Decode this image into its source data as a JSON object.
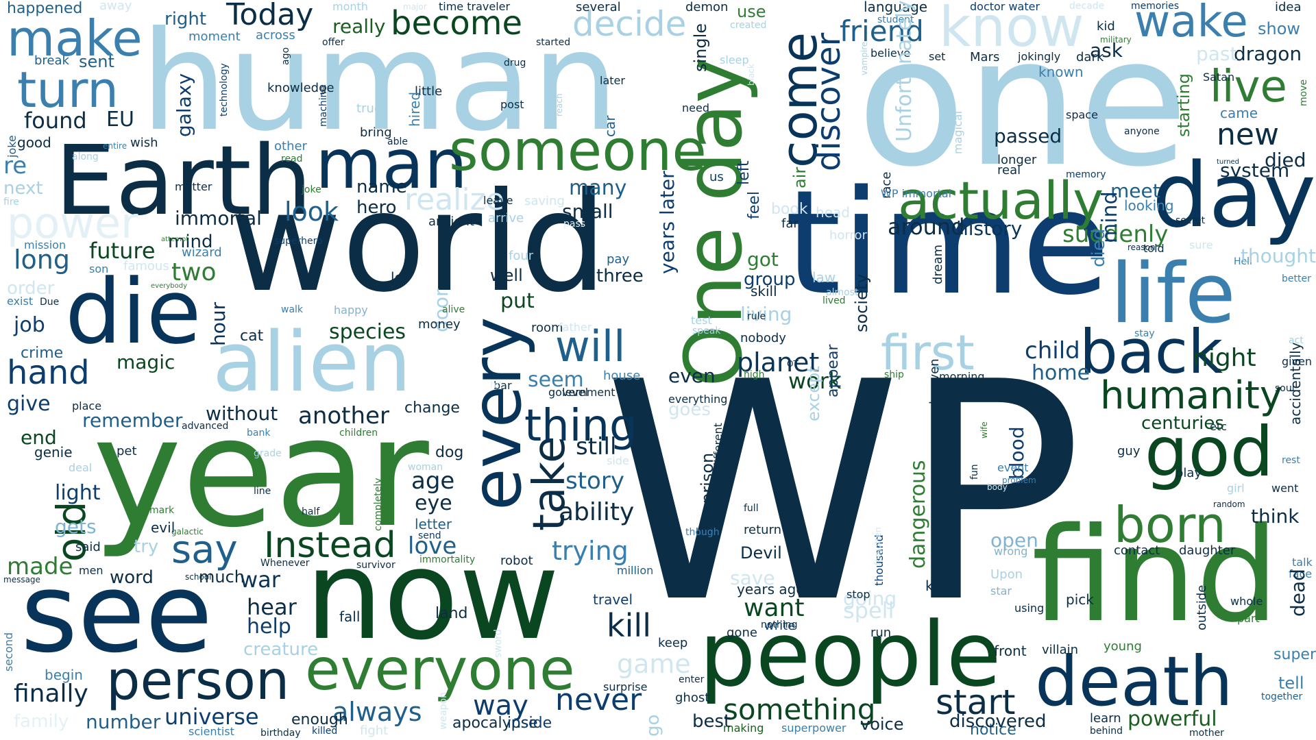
{
  "palette": {
    "navy": "#0b2d45",
    "blue": "#0c3d6e",
    "dark_green": "#1b5e20",
    "green": "#2e7d32",
    "steel": "#1f5f8b",
    "sky": "#3a7fad",
    "light_blue": "#7fb3d1",
    "pale_blue": "#a8d1e3",
    "very_pale_blue": "#cfe6f0",
    "background": "#ffffff"
  },
  "words": [
    "WP",
    "time",
    "world",
    "year",
    "one",
    "human",
    "now",
    "see",
    "find",
    "people",
    "day",
    "Earth",
    "alien",
    "die",
    "life",
    "every",
    "One day",
    "death",
    "man",
    "someone",
    "everyone",
    "person",
    "god",
    "actually",
    "back",
    "make",
    "turn",
    "born",
    "come",
    "first",
    "know",
    "will",
    "wake",
    "humanity",
    "live",
    "Instead",
    "thing",
    "discover",
    "take",
    "Today",
    "become",
    "decide",
    "old",
    "say",
    "hand",
    "friend",
    "power",
    "realize",
    "kill",
    "never",
    "start",
    "something",
    "new",
    "immortal",
    "look",
    "around",
    "suddenly",
    "another",
    "without",
    "species",
    "universe",
    "always",
    "way",
    "died",
    "night",
    "child",
    "home",
    "meet",
    "planet",
    "history",
    "small",
    "many",
    "remember",
    "future",
    "two",
    "long",
    "job",
    "give",
    "end",
    "light",
    "made",
    "finally",
    "number",
    "love",
    "age",
    "eye",
    "story",
    "trying",
    "ability",
    "seem",
    "still",
    "put",
    "work",
    "even",
    "want",
    "group",
    "got",
    "skill",
    "living",
    "name",
    "hero",
    "mind",
    "galaxy",
    "cat",
    "hour",
    "magic",
    "crime",
    "genie",
    "pet",
    "gets",
    "word",
    "much",
    "war",
    "hear",
    "help",
    "land",
    "fall",
    "dog",
    "letter",
    "change",
    "door",
    "three",
    "well",
    "let",
    "happened",
    "away",
    "right",
    "moment",
    "across",
    "really",
    "month",
    "major",
    "time traveler",
    "several",
    "demon",
    "use",
    "created",
    "language",
    "student",
    "doctor water",
    "decade",
    "memories",
    "idea",
    "kid",
    "military",
    "show",
    "dragon",
    "dark",
    "Mars",
    "jokingly",
    "believe",
    "set",
    "little",
    "drug",
    "started",
    "break",
    "sent",
    "found",
    "EU",
    "good",
    "wish",
    "re",
    "next",
    "fire",
    "mission",
    "exist",
    "Due",
    "order",
    "everybody",
    "son",
    "famous",
    "wizard",
    "superhero",
    "ancient",
    "arrive",
    "pass",
    "four",
    "pay",
    "room",
    "father",
    "money",
    "alive",
    "happy",
    "walk",
    "test",
    "speak",
    "nobody",
    "high",
    "OT",
    "ship",
    "morning",
    "king",
    "Devil",
    "return",
    "full",
    "luck",
    "though",
    "send",
    "immortality",
    "Whenever",
    "survivor",
    "robot",
    "million",
    "school",
    "men",
    "message",
    "said",
    "try",
    "evil",
    "galactic",
    "mark",
    "half",
    "line",
    "completely",
    "woman",
    "deal",
    "advanced",
    "bank",
    "children",
    "place",
    "level",
    "government",
    "house",
    "bar",
    "side",
    "game",
    "goes",
    "travel",
    "enter",
    "surprise",
    "sword",
    "weapon",
    "ghost",
    "best",
    "making",
    "superpower",
    "voice",
    "notice",
    "learn",
    "behind",
    "powerful",
    "mother",
    "together",
    "tell",
    "super",
    "face",
    "talk",
    "dead",
    "whole",
    "part",
    "pick",
    "villain",
    "young",
    "outside",
    "front",
    "discovered",
    "using",
    "star",
    "Upon",
    "wrong",
    "open",
    "contact",
    "daughter",
    "think",
    "random",
    "girl",
    "went",
    "play",
    "guy",
    "etc",
    "centuries",
    "accidentally",
    "rest",
    "soul",
    "given",
    "act",
    "better",
    "stay",
    "Hell",
    "thought",
    "sure",
    "reason",
    "told",
    "secret",
    "looking",
    "died",
    "system",
    "starting",
    "came",
    "anyone",
    "space",
    "longer",
    "real",
    "passed",
    "memory",
    "turned",
    "move",
    "Satan",
    "known",
    "ask",
    "past",
    "Unfortunately",
    "magical",
    "vampire",
    "air",
    "black",
    "sleep",
    "hired",
    "able",
    "bring",
    "true",
    "post",
    "later",
    "car",
    "need",
    "single",
    "us",
    "left",
    "feel",
    "book",
    "head",
    "far",
    "horror",
    "rule",
    "law",
    "almost",
    "lived",
    "society",
    "appear",
    "except",
    "prison",
    "different",
    "everything",
    "dangerous",
    "thousand",
    "forgotten",
    "fun",
    "wife",
    "body",
    "blood",
    "city",
    "event",
    "problem",
    "heaven",
    "dream",
    "race",
    "WP immortal",
    "nothing",
    "gone",
    "write",
    "run",
    "going",
    "spell",
    "stop",
    "save",
    "years ago",
    "years later",
    "second",
    "begin",
    "family",
    "creature",
    "scientist",
    "birthday",
    "killed",
    "fight",
    "enough",
    "apocalypse",
    "inside",
    "keep",
    "go",
    "mind",
    "attempt",
    "offer",
    "ago",
    "knowledge",
    "machine",
    "technology",
    "reach",
    "along",
    "entire",
    "read",
    "other",
    "joke",
    "matter",
    "joke",
    "week",
    "leave",
    "saving",
    "hit",
    "grade"
  ]
}
